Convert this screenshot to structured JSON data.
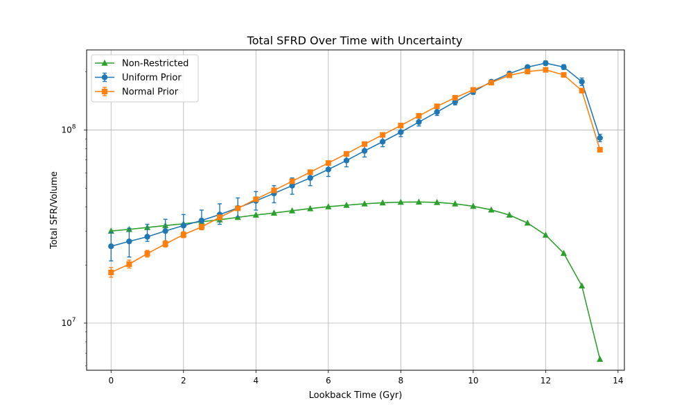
{
  "chart_data": {
    "type": "line",
    "title": "Total SFRD Over Time with Uncertainty",
    "xlabel": "Lookback Time (Gyr)",
    "ylabel": "Total SFR/Volume",
    "yscale": "log",
    "xlim": [
      -0.675,
      14.175
    ],
    "ylim": [
      5700000,
      260000000
    ],
    "xticks": [
      0,
      2,
      4,
      6,
      8,
      10,
      12,
      14
    ],
    "xtick_labels": [
      "0",
      "2",
      "4",
      "6",
      "8",
      "10",
      "12",
      "14"
    ],
    "yticks": [
      10000000,
      100000000
    ],
    "ytick_labels": [
      {
        "base": "10",
        "exp": "7"
      },
      {
        "base": "10",
        "exp": "8"
      }
    ],
    "grid": true,
    "legend_position": "top-left",
    "x": [
      0,
      0.5,
      1,
      1.5,
      2,
      2.5,
      3,
      3.5,
      4,
      4.5,
      5,
      5.5,
      6,
      6.5,
      7,
      7.5,
      8,
      8.5,
      9,
      9.5,
      10,
      10.5,
      11,
      11.5,
      12,
      12.5,
      13,
      13.5
    ],
    "series": [
      {
        "name": "Non-Restricted",
        "color": "#2ca02c",
        "marker": "triangle",
        "values": [
          30000000,
          30600000,
          31300000,
          32000000,
          32700000,
          33500000,
          34300000,
          35300000,
          36300000,
          37200000,
          38200000,
          39200000,
          40100000,
          40800000,
          41500000,
          42000000,
          42300000,
          42400000,
          42200000,
          41500000,
          40300000,
          38600000,
          36300000,
          33000000,
          28600000,
          23000000,
          15600000,
          6500000
        ]
      },
      {
        "name": "Uniform Prior",
        "color": "#1f77b4",
        "marker": "circle",
        "values": [
          25000000,
          26500000,
          28000000,
          30000000,
          32000000,
          34000000,
          36500000,
          39500000,
          43000000,
          47000000,
          51500000,
          56500000,
          62500000,
          69500000,
          78000000,
          87000000,
          97500000,
          110000000,
          124000000,
          140000000,
          158000000,
          178000000,
          196000000,
          212000000,
          222000000,
          212000000,
          178000000,
          91000000
        ],
        "err_low": [
          21000000,
          22000000,
          26500000,
          26500000,
          28500000,
          30500000,
          32500000,
          35500000,
          38500000,
          42000000,
          46500000,
          51500000,
          57500000,
          64500000,
          72500000,
          82000000,
          92500000,
          105000000,
          119000000,
          135000000,
          153000000,
          174000000,
          193000000,
          208000000,
          216000000,
          206000000,
          170000000,
          87000000
        ],
        "err_high": [
          29500000,
          31000000,
          32500000,
          34500000,
          36500000,
          38500000,
          41500000,
          44500000,
          48000000,
          51500000,
          56500000,
          61500000,
          67500000,
          74000000,
          83500000,
          92500000,
          103000000,
          115000000,
          129000000,
          145000000,
          163000000,
          182000000,
          200000000,
          216000000,
          228000000,
          218000000,
          186000000,
          95000000
        ]
      },
      {
        "name": "Normal Prior",
        "color": "#ff7f0e",
        "marker": "square",
        "values": [
          18300000,
          20200000,
          22900000,
          25700000,
          28700000,
          31500000,
          35300000,
          39300000,
          43800000,
          48700000,
          54300000,
          60500000,
          67500000,
          75300000,
          84600000,
          94400000,
          105500000,
          118500000,
          132700000,
          147000000,
          161500000,
          176000000,
          192000000,
          201000000,
          205000000,
          193000000,
          160000000,
          79000000
        ],
        "err_low": [
          17300000,
          19300000,
          22000000,
          24800000,
          27700000,
          30500000,
          34300000,
          38300000,
          42800000,
          47700000,
          53300000,
          59500000,
          66500000,
          74300000,
          83600000,
          93400000,
          104500000,
          117500000,
          131700000,
          146000000,
          160500000,
          175000000,
          191000000,
          200000000,
          204000000,
          192000000,
          159000000,
          78000000
        ],
        "err_high": [
          19400000,
          21200000,
          23800000,
          26700000,
          29700000,
          32500000,
          36300000,
          40300000,
          44800000,
          49700000,
          55300000,
          61500000,
          68500000,
          76300000,
          85600000,
          95400000,
          106500000,
          119500000,
          133700000,
          148000000,
          162500000,
          177000000,
          193000000,
          202000000,
          206000000,
          194000000,
          161000000,
          80000000
        ]
      }
    ]
  }
}
